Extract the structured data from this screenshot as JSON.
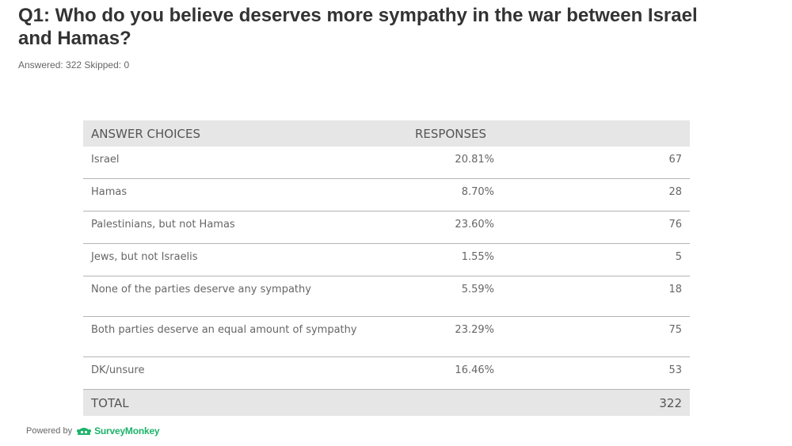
{
  "question": {
    "title": "Q1: Who do you believe deserves more sympathy in the war between Israel and Hamas?",
    "answered_label": "Answered: 322",
    "skipped_label": "Skipped: 0"
  },
  "table": {
    "headers": {
      "answer_choices": "ANSWER CHOICES",
      "responses": "RESPONSES"
    },
    "rows": [
      {
        "choice": "Israel",
        "percent": "20.81%",
        "count": "67"
      },
      {
        "choice": "Hamas",
        "percent": "8.70%",
        "count": "28"
      },
      {
        "choice": "Palestinians, but not Hamas",
        "percent": "23.60%",
        "count": "76"
      },
      {
        "choice": "Jews, but not Israelis",
        "percent": "1.55%",
        "count": "5"
      },
      {
        "choice": "None of the parties deserve any sympathy",
        "percent": "5.59%",
        "count": "18"
      },
      {
        "choice": "Both parties deserve an equal amount of sympathy",
        "percent": "23.29%",
        "count": "75"
      },
      {
        "choice": "DK/unsure",
        "percent": "16.46%",
        "count": "53"
      }
    ],
    "total": {
      "label": "TOTAL",
      "count": "322"
    }
  },
  "footer": {
    "powered_by": "Powered by",
    "brand": "SurveyMonkey",
    "brand_color": "#1db36a",
    "brand_icon": "surveymonkey-logo-icon"
  }
}
